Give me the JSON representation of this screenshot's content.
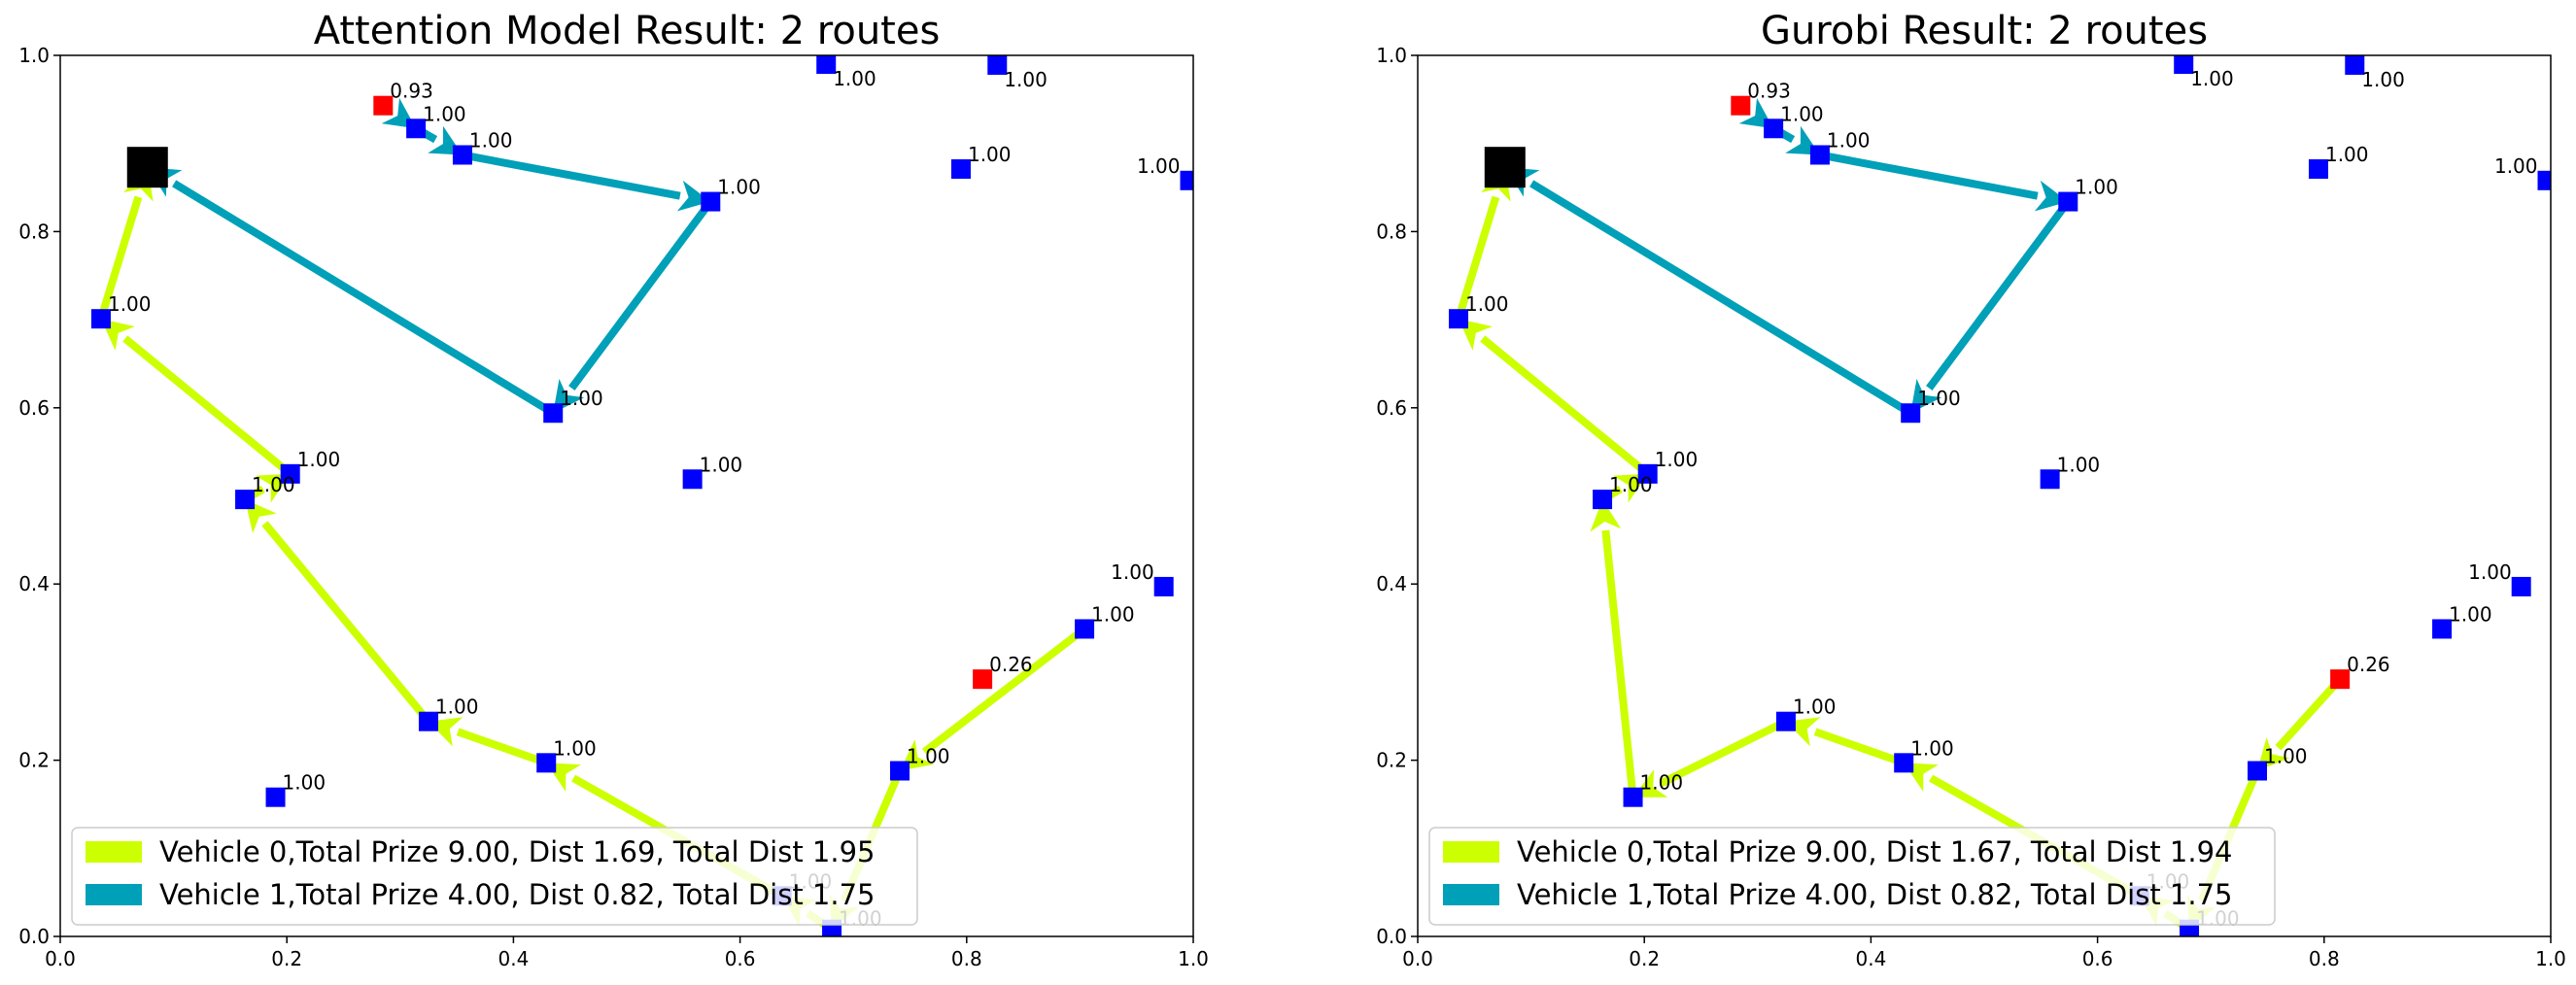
{
  "chart_data": [
    {
      "type": "scatter",
      "title": "Attention Model Result: 2 routes",
      "xlim": [
        0,
        1
      ],
      "ylim": [
        0,
        1
      ],
      "xticks": [
        "0.0",
        "0.2",
        "0.4",
        "0.6",
        "0.8",
        "1.0"
      ],
      "yticks": [
        "0.0",
        "0.2",
        "0.4",
        "0.6",
        "0.8",
        "1.0"
      ],
      "depot": {
        "x": 0.077,
        "y": 0.873,
        "color": "#000000"
      },
      "nodes": [
        {
          "id": "n1",
          "x": 0.285,
          "y": 0.943,
          "prize": "0.93",
          "color": "#ff0000"
        },
        {
          "id": "n2",
          "x": 0.314,
          "y": 0.917,
          "prize": "1.00",
          "color": "#0000ff"
        },
        {
          "id": "n3",
          "x": 0.355,
          "y": 0.887,
          "prize": "1.00",
          "color": "#0000ff"
        },
        {
          "id": "n4",
          "x": 0.574,
          "y": 0.834,
          "prize": "1.00",
          "color": "#0000ff"
        },
        {
          "id": "n5",
          "x": 0.435,
          "y": 0.594,
          "prize": "1.00",
          "color": "#0000ff"
        },
        {
          "id": "n6",
          "x": 0.676,
          "y": 0.99,
          "prize": "1.00",
          "color": "#0000ff"
        },
        {
          "id": "n7",
          "x": 0.827,
          "y": 0.989,
          "prize": "1.00",
          "color": "#0000ff"
        },
        {
          "id": "n8",
          "x": 0.795,
          "y": 0.871,
          "prize": "1.00",
          "color": "#0000ff"
        },
        {
          "id": "n9",
          "x": 0.997,
          "y": 0.858,
          "prize": "1.00",
          "color": "#0000ff"
        },
        {
          "id": "n10",
          "x": 0.036,
          "y": 0.701,
          "prize": "1.00",
          "color": "#0000ff"
        },
        {
          "id": "n11",
          "x": 0.203,
          "y": 0.525,
          "prize": "1.00",
          "color": "#0000ff"
        },
        {
          "id": "n12",
          "x": 0.163,
          "y": 0.496,
          "prize": "1.00",
          "color": "#0000ff"
        },
        {
          "id": "n13",
          "x": 0.558,
          "y": 0.519,
          "prize": "1.00",
          "color": "#0000ff"
        },
        {
          "id": "n14",
          "x": 0.974,
          "y": 0.397,
          "prize": "1.00",
          "color": "#0000ff"
        },
        {
          "id": "n15",
          "x": 0.904,
          "y": 0.349,
          "prize": "1.00",
          "color": "#0000ff"
        },
        {
          "id": "n16",
          "x": 0.814,
          "y": 0.292,
          "prize": "0.26",
          "color": "#ff0000"
        },
        {
          "id": "n17",
          "x": 0.325,
          "y": 0.244,
          "prize": "1.00",
          "color": "#0000ff"
        },
        {
          "id": "n18",
          "x": 0.429,
          "y": 0.197,
          "prize": "1.00",
          "color": "#0000ff"
        },
        {
          "id": "n19",
          "x": 0.741,
          "y": 0.188,
          "prize": "1.00",
          "color": "#0000ff"
        },
        {
          "id": "n20",
          "x": 0.19,
          "y": 0.158,
          "prize": "1.00",
          "color": "#0000ff"
        },
        {
          "id": "n21",
          "x": 0.637,
          "y": 0.046,
          "prize": "1.00",
          "color": "#0000ff"
        },
        {
          "id": "n22",
          "x": 0.681,
          "y": 0.008,
          "prize": "1.00",
          "color": "#0000ff"
        }
      ],
      "routes": [
        {
          "name": "Vehicle 0,Total Prize 9.00, Dist 1.69, Total Dist 1.95",
          "color": "#ccff00",
          "path": [
            [
              0.904,
              0.349
            ],
            [
              0.741,
              0.188
            ],
            [
              0.681,
              0.008
            ],
            [
              0.637,
              0.046
            ],
            [
              0.429,
              0.197
            ],
            [
              0.325,
              0.244
            ],
            [
              0.163,
              0.496
            ],
            [
              0.203,
              0.525
            ],
            [
              0.036,
              0.701
            ],
            [
              0.077,
              0.873
            ]
          ]
        },
        {
          "name": "Vehicle 1,Total Prize 4.00, Dist 0.82, Total Dist 1.75",
          "color": "#00a0b8",
          "path": [
            [
              0.285,
              0.943
            ],
            [
              0.314,
              0.917
            ],
            [
              0.355,
              0.887
            ],
            [
              0.574,
              0.834
            ],
            [
              0.435,
              0.594
            ],
            [
              0.077,
              0.873
            ]
          ]
        }
      ],
      "legend_position": "lower-left"
    },
    {
      "type": "scatter",
      "title": "Gurobi Result: 2 routes",
      "xlim": [
        0,
        1
      ],
      "ylim": [
        0,
        1
      ],
      "xticks": [
        "0.0",
        "0.2",
        "0.4",
        "0.6",
        "0.8",
        "1.0"
      ],
      "yticks": [
        "0.0",
        "0.2",
        "0.4",
        "0.6",
        "0.8",
        "1.0"
      ],
      "depot": {
        "x": 0.077,
        "y": 0.873,
        "color": "#000000"
      },
      "nodes": [
        {
          "id": "n1",
          "x": 0.285,
          "y": 0.943,
          "prize": "0.93",
          "color": "#ff0000"
        },
        {
          "id": "n2",
          "x": 0.314,
          "y": 0.917,
          "prize": "1.00",
          "color": "#0000ff"
        },
        {
          "id": "n3",
          "x": 0.355,
          "y": 0.887,
          "prize": "1.00",
          "color": "#0000ff"
        },
        {
          "id": "n4",
          "x": 0.574,
          "y": 0.834,
          "prize": "1.00",
          "color": "#0000ff"
        },
        {
          "id": "n5",
          "x": 0.435,
          "y": 0.594,
          "prize": "1.00",
          "color": "#0000ff"
        },
        {
          "id": "n6",
          "x": 0.676,
          "y": 0.99,
          "prize": "1.00",
          "color": "#0000ff"
        },
        {
          "id": "n7",
          "x": 0.827,
          "y": 0.989,
          "prize": "1.00",
          "color": "#0000ff"
        },
        {
          "id": "n8",
          "x": 0.795,
          "y": 0.871,
          "prize": "1.00",
          "color": "#0000ff"
        },
        {
          "id": "n9",
          "x": 0.997,
          "y": 0.858,
          "prize": "1.00",
          "color": "#0000ff"
        },
        {
          "id": "n10",
          "x": 0.036,
          "y": 0.701,
          "prize": "1.00",
          "color": "#0000ff"
        },
        {
          "id": "n11",
          "x": 0.203,
          "y": 0.525,
          "prize": "1.00",
          "color": "#0000ff"
        },
        {
          "id": "n12",
          "x": 0.163,
          "y": 0.496,
          "prize": "1.00",
          "color": "#0000ff"
        },
        {
          "id": "n13",
          "x": 0.558,
          "y": 0.519,
          "prize": "1.00",
          "color": "#0000ff"
        },
        {
          "id": "n14",
          "x": 0.974,
          "y": 0.397,
          "prize": "1.00",
          "color": "#0000ff"
        },
        {
          "id": "n15",
          "x": 0.904,
          "y": 0.349,
          "prize": "1.00",
          "color": "#0000ff"
        },
        {
          "id": "n16",
          "x": 0.814,
          "y": 0.292,
          "prize": "0.26",
          "color": "#ff0000"
        },
        {
          "id": "n17",
          "x": 0.325,
          "y": 0.244,
          "prize": "1.00",
          "color": "#0000ff"
        },
        {
          "id": "n18",
          "x": 0.429,
          "y": 0.197,
          "prize": "1.00",
          "color": "#0000ff"
        },
        {
          "id": "n19",
          "x": 0.741,
          "y": 0.188,
          "prize": "1.00",
          "color": "#0000ff"
        },
        {
          "id": "n20",
          "x": 0.19,
          "y": 0.158,
          "prize": "1.00",
          "color": "#0000ff"
        },
        {
          "id": "n21",
          "x": 0.637,
          "y": 0.046,
          "prize": "1.00",
          "color": "#0000ff"
        },
        {
          "id": "n22",
          "x": 0.681,
          "y": 0.008,
          "prize": "1.00",
          "color": "#0000ff"
        }
      ],
      "routes": [
        {
          "name": "Vehicle 0,Total Prize 9.00, Dist 1.67, Total Dist 1.94",
          "color": "#ccff00",
          "path": [
            [
              0.814,
              0.292
            ],
            [
              0.741,
              0.188
            ],
            [
              0.681,
              0.008
            ],
            [
              0.637,
              0.046
            ],
            [
              0.429,
              0.197
            ],
            [
              0.325,
              0.244
            ],
            [
              0.19,
              0.158
            ],
            [
              0.163,
              0.496
            ],
            [
              0.203,
              0.525
            ],
            [
              0.036,
              0.701
            ],
            [
              0.077,
              0.873
            ]
          ]
        },
        {
          "name": "Vehicle 1,Total Prize 4.00, Dist 0.82, Total Dist 1.75",
          "color": "#00a0b8",
          "path": [
            [
              0.285,
              0.943
            ],
            [
              0.314,
              0.917
            ],
            [
              0.355,
              0.887
            ],
            [
              0.574,
              0.834
            ],
            [
              0.435,
              0.594
            ],
            [
              0.077,
              0.873
            ]
          ]
        }
      ],
      "legend_position": "lower-left"
    }
  ]
}
